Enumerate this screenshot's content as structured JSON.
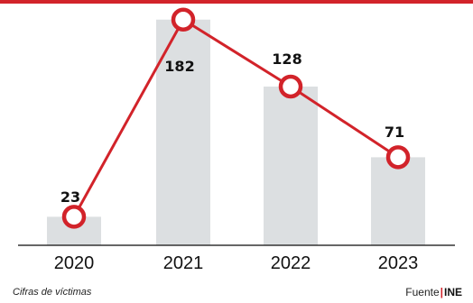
{
  "chart_data": {
    "type": "bar",
    "categories": [
      "2020",
      "2021",
      "2022",
      "2023"
    ],
    "values": [
      23,
      182,
      128,
      71
    ],
    "overlay": "line",
    "ylim": [
      0,
      200
    ],
    "grid": false,
    "title": "",
    "xlabel": "",
    "ylabel": ""
  },
  "footer": {
    "note": "Cifras de víctimas",
    "source_prefix": "Fuente",
    "source_separator": "|",
    "source_org": "INE"
  },
  "colors": {
    "accent": "#d2232a",
    "bar": "#dcdfe1",
    "text": "#111111",
    "axis": "#333333"
  }
}
